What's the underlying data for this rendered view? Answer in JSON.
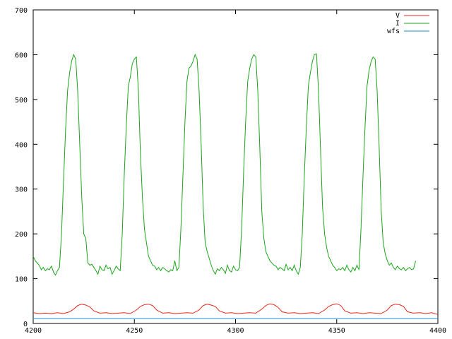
{
  "chart_data": {
    "type": "line",
    "title": "",
    "xlabel": "",
    "ylabel": "",
    "xlim": [
      4200,
      4400
    ],
    "ylim": [
      0,
      700
    ],
    "x_ticks": [
      4200,
      4250,
      4300,
      4350,
      4400
    ],
    "y_ticks": [
      0,
      100,
      200,
      300,
      400,
      500,
      600,
      700
    ],
    "grid": false,
    "legend": "top-right",
    "series": [
      {
        "name": "V",
        "color": "#e8261c",
        "points": [
          [
            4200,
            24
          ],
          [
            4203,
            22
          ],
          [
            4206,
            23
          ],
          [
            4209,
            22
          ],
          [
            4212,
            24
          ],
          [
            4215,
            22
          ],
          [
            4218,
            26
          ],
          [
            4220,
            32
          ],
          [
            4222,
            40
          ],
          [
            4224,
            43
          ],
          [
            4226,
            41
          ],
          [
            4228,
            37
          ],
          [
            4230,
            28
          ],
          [
            4233,
            23
          ],
          [
            4236,
            24
          ],
          [
            4239,
            22
          ],
          [
            4242,
            23
          ],
          [
            4245,
            24
          ],
          [
            4248,
            22
          ],
          [
            4251,
            30
          ],
          [
            4253,
            38
          ],
          [
            4255,
            42
          ],
          [
            4257,
            43
          ],
          [
            4259,
            40
          ],
          [
            4261,
            30
          ],
          [
            4264,
            23
          ],
          [
            4267,
            24
          ],
          [
            4270,
            22
          ],
          [
            4273,
            23
          ],
          [
            4276,
            24
          ],
          [
            4279,
            23
          ],
          [
            4282,
            30
          ],
          [
            4284,
            40
          ],
          [
            4286,
            43
          ],
          [
            4288,
            41
          ],
          [
            4290,
            38
          ],
          [
            4292,
            28
          ],
          [
            4295,
            23
          ],
          [
            4298,
            24
          ],
          [
            4301,
            22
          ],
          [
            4304,
            23
          ],
          [
            4307,
            24
          ],
          [
            4310,
            23
          ],
          [
            4313,
            32
          ],
          [
            4315,
            40
          ],
          [
            4317,
            44
          ],
          [
            4319,
            42
          ],
          [
            4321,
            36
          ],
          [
            4323,
            26
          ],
          [
            4326,
            23
          ],
          [
            4329,
            24
          ],
          [
            4332,
            22
          ],
          [
            4335,
            23
          ],
          [
            4338,
            24
          ],
          [
            4341,
            22
          ],
          [
            4344,
            30
          ],
          [
            4346,
            38
          ],
          [
            4348,
            42
          ],
          [
            4350,
            44
          ],
          [
            4352,
            40
          ],
          [
            4354,
            28
          ],
          [
            4357,
            23
          ],
          [
            4360,
            24
          ],
          [
            4363,
            22
          ],
          [
            4366,
            24
          ],
          [
            4369,
            23
          ],
          [
            4372,
            22
          ],
          [
            4375,
            30
          ],
          [
            4377,
            40
          ],
          [
            4379,
            43
          ],
          [
            4381,
            42
          ],
          [
            4383,
            38
          ],
          [
            4385,
            26
          ],
          [
            4388,
            23
          ],
          [
            4391,
            24
          ],
          [
            4394,
            22
          ],
          [
            4397,
            24
          ],
          [
            4400,
            20
          ]
        ]
      },
      {
        "name": "I",
        "color": "#1aa51a",
        "points": [
          [
            4200,
            150
          ],
          [
            4201,
            140
          ],
          [
            4202,
            135
          ],
          [
            4203,
            130
          ],
          [
            4204,
            120
          ],
          [
            4205,
            125
          ],
          [
            4206,
            118
          ],
          [
            4207,
            122
          ],
          [
            4208,
            120
          ],
          [
            4209,
            128
          ],
          [
            4210,
            115
          ],
          [
            4211,
            108
          ],
          [
            4212,
            118
          ],
          [
            4213,
            125
          ],
          [
            4214,
            200
          ],
          [
            4215,
            320
          ],
          [
            4216,
            430
          ],
          [
            4217,
            520
          ],
          [
            4218,
            560
          ],
          [
            4219,
            585
          ],
          [
            4220,
            600
          ],
          [
            4221,
            590
          ],
          [
            4222,
            520
          ],
          [
            4223,
            400
          ],
          [
            4224,
            280
          ],
          [
            4225,
            200
          ],
          [
            4226,
            190
          ],
          [
            4227,
            135
          ],
          [
            4228,
            130
          ],
          [
            4229,
            132
          ],
          [
            4230,
            125
          ],
          [
            4231,
            118
          ],
          [
            4232,
            110
          ],
          [
            4233,
            128
          ],
          [
            4234,
            120
          ],
          [
            4235,
            118
          ],
          [
            4236,
            130
          ],
          [
            4237,
            122
          ],
          [
            4238,
            125
          ],
          [
            4239,
            110
          ],
          [
            4240,
            118
          ],
          [
            4241,
            128
          ],
          [
            4242,
            122
          ],
          [
            4243,
            118
          ],
          [
            4244,
            200
          ],
          [
            4245,
            330
          ],
          [
            4246,
            440
          ],
          [
            4247,
            530
          ],
          [
            4248,
            550
          ],
          [
            4249,
            580
          ],
          [
            4250,
            590
          ],
          [
            4251,
            595
          ],
          [
            4252,
            520
          ],
          [
            4253,
            380
          ],
          [
            4254,
            280
          ],
          [
            4255,
            210
          ],
          [
            4256,
            180
          ],
          [
            4257,
            150
          ],
          [
            4258,
            140
          ],
          [
            4259,
            130
          ],
          [
            4260,
            128
          ],
          [
            4261,
            120
          ],
          [
            4262,
            125
          ],
          [
            4263,
            118
          ],
          [
            4264,
            125
          ],
          [
            4265,
            122
          ],
          [
            4266,
            118
          ],
          [
            4267,
            115
          ],
          [
            4268,
            120
          ],
          [
            4269,
            118
          ],
          [
            4270,
            140
          ],
          [
            4271,
            118
          ],
          [
            4272,
            125
          ],
          [
            4273,
            210
          ],
          [
            4274,
            330
          ],
          [
            4275,
            450
          ],
          [
            4276,
            540
          ],
          [
            4277,
            570
          ],
          [
            4278,
            575
          ],
          [
            4279,
            585
          ],
          [
            4280,
            600
          ],
          [
            4281,
            590
          ],
          [
            4282,
            520
          ],
          [
            4283,
            400
          ],
          [
            4284,
            260
          ],
          [
            4285,
            180
          ],
          [
            4286,
            160
          ],
          [
            4287,
            145
          ],
          [
            4288,
            130
          ],
          [
            4289,
            118
          ],
          [
            4290,
            110
          ],
          [
            4291,
            122
          ],
          [
            4292,
            118
          ],
          [
            4293,
            125
          ],
          [
            4294,
            120
          ],
          [
            4295,
            112
          ],
          [
            4296,
            130
          ],
          [
            4297,
            118
          ],
          [
            4298,
            115
          ],
          [
            4299,
            128
          ],
          [
            4300,
            120
          ],
          [
            4301,
            118
          ],
          [
            4302,
            125
          ],
          [
            4303,
            210
          ],
          [
            4304,
            340
          ],
          [
            4305,
            450
          ],
          [
            4306,
            540
          ],
          [
            4307,
            570
          ],
          [
            4308,
            590
          ],
          [
            4309,
            600
          ],
          [
            4310,
            595
          ],
          [
            4311,
            520
          ],
          [
            4312,
            390
          ],
          [
            4313,
            250
          ],
          [
            4314,
            190
          ],
          [
            4315,
            160
          ],
          [
            4316,
            150
          ],
          [
            4317,
            140
          ],
          [
            4318,
            135
          ],
          [
            4319,
            130
          ],
          [
            4320,
            128
          ],
          [
            4321,
            120
          ],
          [
            4322,
            125
          ],
          [
            4323,
            122
          ],
          [
            4324,
            118
          ],
          [
            4325,
            132
          ],
          [
            4326,
            120
          ],
          [
            4327,
            125
          ],
          [
            4328,
            118
          ],
          [
            4329,
            130
          ],
          [
            4330,
            118
          ],
          [
            4331,
            110
          ],
          [
            4332,
            125
          ],
          [
            4333,
            200
          ],
          [
            4334,
            330
          ],
          [
            4335,
            440
          ],
          [
            4336,
            530
          ],
          [
            4337,
            560
          ],
          [
            4338,
            585
          ],
          [
            4339,
            600
          ],
          [
            4340,
            602
          ],
          [
            4341,
            520
          ],
          [
            4342,
            390
          ],
          [
            4343,
            260
          ],
          [
            4344,
            200
          ],
          [
            4345,
            170
          ],
          [
            4346,
            150
          ],
          [
            4347,
            140
          ],
          [
            4348,
            130
          ],
          [
            4349,
            125
          ],
          [
            4350,
            118
          ],
          [
            4351,
            122
          ],
          [
            4352,
            120
          ],
          [
            4353,
            125
          ],
          [
            4354,
            118
          ],
          [
            4355,
            130
          ],
          [
            4356,
            120
          ],
          [
            4357,
            115
          ],
          [
            4358,
            125
          ],
          [
            4359,
            118
          ],
          [
            4360,
            130
          ],
          [
            4361,
            120
          ],
          [
            4362,
            210
          ],
          [
            4363,
            330
          ],
          [
            4364,
            440
          ],
          [
            4365,
            530
          ],
          [
            4366,
            565
          ],
          [
            4367,
            585
          ],
          [
            4368,
            595
          ],
          [
            4369,
            590
          ],
          [
            4370,
            520
          ],
          [
            4371,
            390
          ],
          [
            4372,
            250
          ],
          [
            4373,
            180
          ],
          [
            4374,
            155
          ],
          [
            4375,
            140
          ],
          [
            4376,
            130
          ],
          [
            4377,
            135
          ],
          [
            4378,
            125
          ],
          [
            4379,
            120
          ],
          [
            4380,
            128
          ],
          [
            4381,
            122
          ],
          [
            4382,
            120
          ],
          [
            4383,
            125
          ],
          [
            4384,
            118
          ],
          [
            4385,
            122
          ],
          [
            4386,
            125
          ],
          [
            4387,
            120
          ],
          [
            4388,
            122
          ],
          [
            4389,
            140
          ]
        ]
      },
      {
        "name": "wfs",
        "color": "#1a8fd6",
        "points": [
          [
            4200,
            11
          ],
          [
            4220,
            11
          ],
          [
            4240,
            11
          ],
          [
            4260,
            11
          ],
          [
            4280,
            11
          ],
          [
            4300,
            11
          ],
          [
            4320,
            11
          ],
          [
            4340,
            11
          ],
          [
            4360,
            11
          ],
          [
            4380,
            11
          ],
          [
            4400,
            11
          ]
        ]
      }
    ]
  }
}
